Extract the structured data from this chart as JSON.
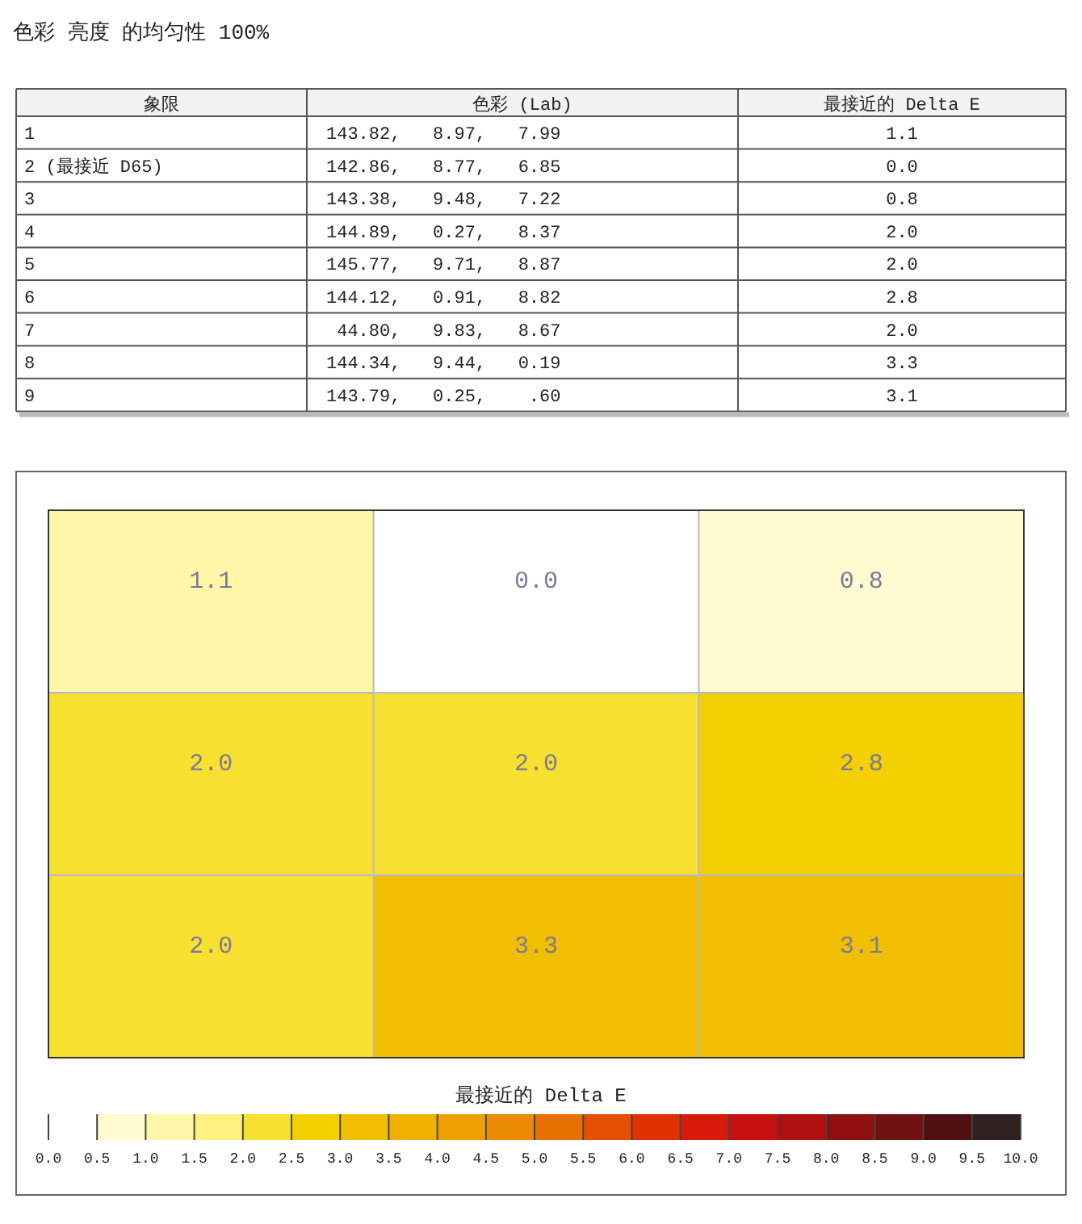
{
  "chart_data": [
    {
      "type": "other",
      "title": "色彩 亮度 的均匀性 100%",
      "categories": [
        "象限",
        "色彩 (Lab)",
        "最接近的 Delta E"
      ],
      "annotations": [
        "1",
        "143.82,   8.97,   7.99",
        "1.1",
        "2 (最接近 D65)",
        "142.86,   8.77,   6.85",
        "0.0",
        "3",
        "143.38,   9.48,   7.22",
        "0.8",
        "4",
        "144.89,   0.27,   8.37",
        "2.0",
        "5",
        "145.77,   9.71,   8.87",
        "2.0",
        "6",
        "144.12,   0.91,   8.82",
        "2.8",
        "7",
        " 44.80,   9.83,   8.67",
        "2.0",
        "8",
        "144.34,   9.44,   0.19",
        "3.3",
        "9",
        "143.79,   0.25,    .60",
        "3.1"
      ]
    },
    {
      "type": "heatmap",
      "categories": [
        null,
        null,
        null
      ],
      "y_categories": [
        null,
        null,
        null
      ],
      "cells": [
        [
          1.1,
          0.0,
          0.8
        ],
        [
          2.0,
          2.0,
          2.8
        ],
        [
          2.0,
          3.3,
          3.1
        ]
      ],
      "cell_labels": [
        [
          "1.1",
          "0.0",
          "0.8"
        ],
        [
          "2.0",
          "2.0",
          "2.8"
        ],
        [
          "2.0",
          "3.3",
          "3.1"
        ]
      ],
      "clabel": "最接近的 Delta E",
      "clim": [
        0,
        10
      ],
      "grid": true,
      "colors": [
        "#ffffff",
        "#fffbd0",
        "#fff6a8",
        "#fff080",
        "#f8e030",
        "#f5d000",
        "#f0c000",
        "#f0b000",
        "#eea000",
        "#ea8a00",
        "#e87000",
        "#e45000",
        "#e03000",
        "#d81a0a",
        "#c81010",
        "#b01010",
        "#901010",
        "#701010",
        "#501010",
        "#302020"
      ],
      "cticks": [
        {
          "value": 0,
          "label": "0.0"
        },
        {
          "value": 0.5,
          "label": "0.5"
        },
        {
          "value": 1,
          "label": "1.0"
        },
        {
          "value": 1.5,
          "label": "1.5"
        },
        {
          "value": 2,
          "label": "2.0"
        },
        {
          "value": 2.5,
          "label": "2.5"
        },
        {
          "value": 3,
          "label": "3.0"
        },
        {
          "value": 3.5,
          "label": "3.5"
        },
        {
          "value": 4,
          "label": "4.0"
        },
        {
          "value": 4.5,
          "label": "4.5"
        },
        {
          "value": 5,
          "label": "5.0"
        },
        {
          "value": 5.5,
          "label": "5.5"
        },
        {
          "value": 6,
          "label": "6.0"
        },
        {
          "value": 6.5,
          "label": "6.5"
        },
        {
          "value": 7,
          "label": "7.0"
        },
        {
          "value": 7.5,
          "label": "7.5"
        },
        {
          "value": 8,
          "label": "8.0"
        },
        {
          "value": 8.5,
          "label": "8.5"
        },
        {
          "value": 9,
          "label": "9.0"
        },
        {
          "value": 9.5,
          "label": "9.5"
        },
        {
          "value": 10,
          "label": "10.0"
        }
      ]
    }
  ]
}
